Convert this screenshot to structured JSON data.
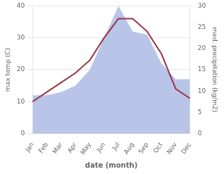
{
  "chart_data": {
    "type": "line",
    "categories": [
      "Jan",
      "Feb",
      "Mar",
      "Apr",
      "May",
      "Jun",
      "Jul",
      "Aug",
      "Sep",
      "Oct",
      "Nov",
      "Dec"
    ],
    "series": [
      {
        "type": "area",
        "color": "#b8c4e8",
        "values": [
          12,
          12,
          13,
          15,
          20,
          30,
          40,
          32,
          31,
          22,
          17,
          17
        ]
      },
      {
        "type": "line",
        "color": "#993344",
        "values": [
          10,
          13,
          16,
          19,
          23,
          30,
          36,
          36,
          32,
          25,
          14,
          11
        ]
      }
    ],
    "xlabel": "date (month)",
    "ylabel": "max temp (C)",
    "y2label": "med. precipitation (kg/m2)",
    "ylim": [
      0,
      40
    ],
    "yticks": [
      0,
      10,
      20,
      30,
      40
    ],
    "y2lim": [
      0,
      30
    ],
    "y2ticks": [
      0,
      5,
      10,
      15,
      20,
      25,
      30
    ],
    "grid": true
  }
}
